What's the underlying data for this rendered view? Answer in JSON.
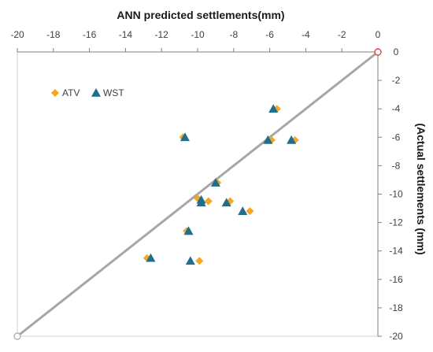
{
  "chart_data": {
    "type": "scatter",
    "title": "ANN predicted settlements(mm)",
    "xlabel": "ANN predicted settlements(mm)",
    "ylabel": "(Actual settlements (mm)",
    "xlim": [
      -20,
      0
    ],
    "ylim": [
      -20,
      0
    ],
    "x_ticks": [
      -20,
      -18,
      -16,
      -14,
      -12,
      -10,
      -8,
      -6,
      -4,
      -2,
      0
    ],
    "y_ticks": [
      0,
      -2,
      -4,
      -6,
      -8,
      -10,
      -12,
      -14,
      -16,
      -18,
      -20
    ],
    "grid": false,
    "x_axis_position": "top",
    "y_axis_position": "right",
    "legend": {
      "position": "top-left",
      "entries": [
        "ATV",
        "WST"
      ]
    },
    "series": [
      {
        "name": "ATV",
        "marker": "diamond",
        "color": "#F5A623",
        "points": [
          {
            "x": -5.6,
            "y": -4.0
          },
          {
            "x": -10.8,
            "y": -6.0
          },
          {
            "x": -5.9,
            "y": -6.2
          },
          {
            "x": -4.6,
            "y": -6.2
          },
          {
            "x": -8.9,
            "y": -9.2
          },
          {
            "x": -10.0,
            "y": -10.3
          },
          {
            "x": -9.4,
            "y": -10.5
          },
          {
            "x": -8.2,
            "y": -10.5
          },
          {
            "x": -7.1,
            "y": -11.2
          },
          {
            "x": -10.6,
            "y": -12.6
          },
          {
            "x": -12.8,
            "y": -14.5
          },
          {
            "x": -9.9,
            "y": -14.7
          }
        ]
      },
      {
        "name": "WST",
        "marker": "triangle",
        "color": "#1F6E8C",
        "points": [
          {
            "x": -5.8,
            "y": -4.0
          },
          {
            "x": -10.7,
            "y": -6.0
          },
          {
            "x": -6.1,
            "y": -6.2
          },
          {
            "x": -4.8,
            "y": -6.2
          },
          {
            "x": -9.0,
            "y": -9.2
          },
          {
            "x": -9.8,
            "y": -10.4
          },
          {
            "x": -9.8,
            "y": -10.6
          },
          {
            "x": -8.4,
            "y": -10.6
          },
          {
            "x": -7.5,
            "y": -11.2
          },
          {
            "x": -10.5,
            "y": -12.6
          },
          {
            "x": -12.6,
            "y": -14.5
          },
          {
            "x": -10.4,
            "y": -14.7
          }
        ]
      }
    ],
    "reference_line": {
      "from": [
        -20,
        -20
      ],
      "to": [
        0,
        0
      ],
      "color": "#A6A6A6"
    }
  }
}
